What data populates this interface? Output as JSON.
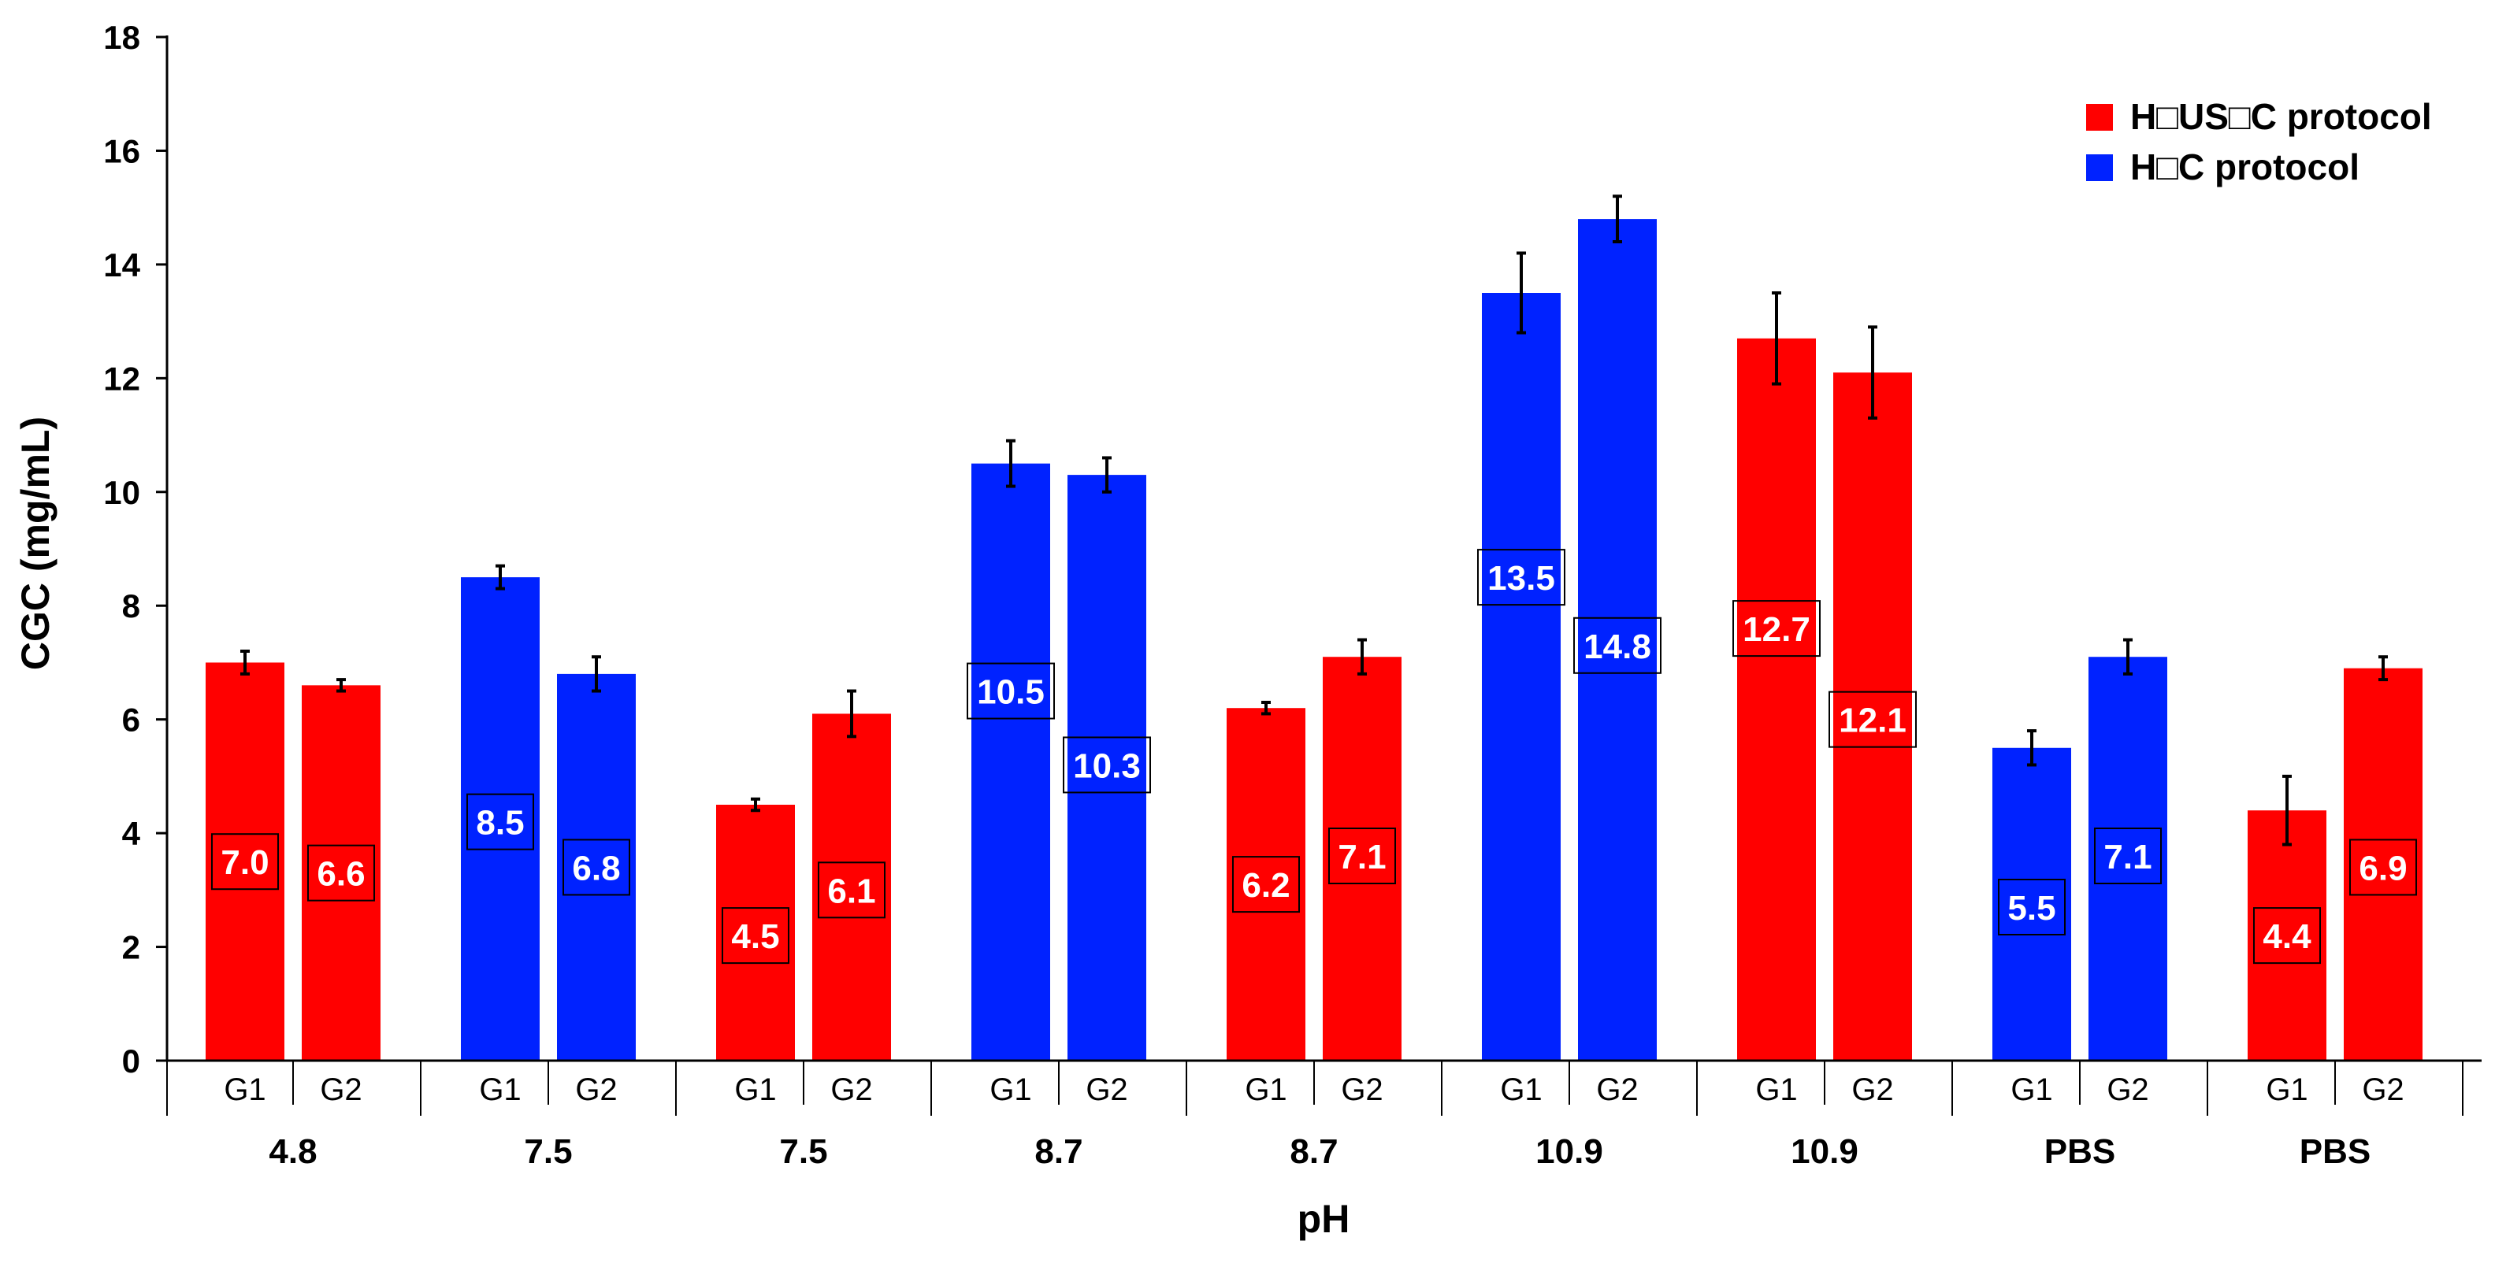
{
  "chart_data": {
    "type": "bar",
    "title": "",
    "xlabel": "pH",
    "ylabel": "CGC (mg/mL)",
    "ylim": [
      0,
      18
    ],
    "yticks": [
      0,
      2,
      4,
      6,
      8,
      10,
      12,
      14,
      16,
      18
    ],
    "groups": [
      "4.8",
      "7.5",
      "7.5",
      "8.7",
      "8.7",
      "10.9",
      "10.9",
      "PBS",
      "PBS"
    ],
    "subcategories": [
      "G1",
      "G2"
    ],
    "series": [
      {
        "name": "H□US□C protocol",
        "color": "#ff0000"
      },
      {
        "name": "H□C protocol",
        "color": "#0022ff"
      }
    ],
    "bars": [
      {
        "group": 0,
        "sub": "G1",
        "series": 0,
        "value": 7.0,
        "error": 0.2,
        "label": "7.0"
      },
      {
        "group": 0,
        "sub": "G2",
        "series": 0,
        "value": 6.6,
        "error": 0.1,
        "label": "6.6"
      },
      {
        "group": 1,
        "sub": "G1",
        "series": 1,
        "value": 8.5,
        "error": 0.2,
        "label": "8.5"
      },
      {
        "group": 1,
        "sub": "G2",
        "series": 1,
        "value": 6.8,
        "error": 0.3,
        "label": "6.8"
      },
      {
        "group": 2,
        "sub": "G1",
        "series": 0,
        "value": 4.5,
        "error": 0.1,
        "label": "4.5"
      },
      {
        "group": 2,
        "sub": "G2",
        "series": 0,
        "value": 6.1,
        "error": 0.4,
        "label": "6.1"
      },
      {
        "group": 3,
        "sub": "G1",
        "series": 1,
        "value": 10.5,
        "error": 0.4,
        "label": "10.5"
      },
      {
        "group": 3,
        "sub": "G2",
        "series": 1,
        "value": 10.3,
        "error": 0.3,
        "label": "10.3"
      },
      {
        "group": 4,
        "sub": "G1",
        "series": 0,
        "value": 6.2,
        "error": 0.1,
        "label": "6.2"
      },
      {
        "group": 4,
        "sub": "G2",
        "series": 0,
        "value": 7.1,
        "error": 0.3,
        "label": "7.1"
      },
      {
        "group": 5,
        "sub": "G1",
        "series": 1,
        "value": 13.5,
        "error": 0.7,
        "label": "13.5"
      },
      {
        "group": 5,
        "sub": "G2",
        "series": 1,
        "value": 14.8,
        "error": 0.4,
        "label": "14.8"
      },
      {
        "group": 6,
        "sub": "G1",
        "series": 0,
        "value": 12.7,
        "error": 0.8,
        "label": "12.7"
      },
      {
        "group": 6,
        "sub": "G2",
        "series": 0,
        "value": 12.1,
        "error": 0.8,
        "label": "12.1"
      },
      {
        "group": 7,
        "sub": "G1",
        "series": 1,
        "value": 5.5,
        "error": 0.3,
        "label": "5.5"
      },
      {
        "group": 7,
        "sub": "G2",
        "series": 1,
        "value": 7.1,
        "error": 0.3,
        "label": "7.1"
      },
      {
        "group": 8,
        "sub": "G1",
        "series": 0,
        "value": 4.4,
        "error": 0.6,
        "label": "4.4"
      },
      {
        "group": 8,
        "sub": "G2",
        "series": 0,
        "value": 6.9,
        "error": 0.2,
        "label": "6.9"
      }
    ],
    "label_positions": [
      3.5,
      3.3,
      4.2,
      3.4,
      2.2,
      3.0,
      6.5,
      5.2,
      3.1,
      3.6,
      8.5,
      7.3,
      7.6,
      6.0,
      2.7,
      3.6,
      2.2,
      3.4
    ],
    "legend_position": "top-right",
    "grid": false
  }
}
